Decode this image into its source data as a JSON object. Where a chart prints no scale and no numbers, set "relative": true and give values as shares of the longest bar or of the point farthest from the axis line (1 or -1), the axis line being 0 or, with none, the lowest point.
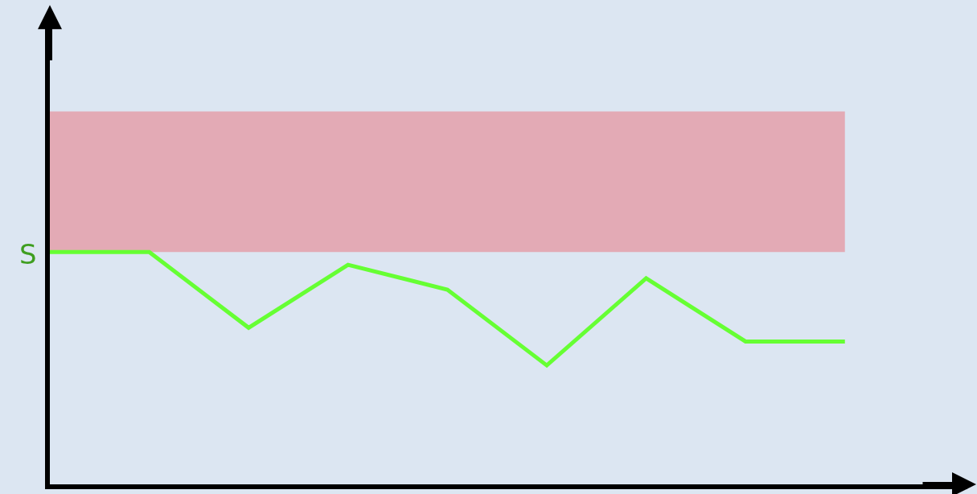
{
  "chart_data": {
    "type": "line",
    "relative": true,
    "marker": "none",
    "line_style": "solid",
    "categories": [
      null,
      null,
      null,
      null,
      null,
      null,
      null,
      null,
      null
    ],
    "series": [
      {
        "color": "#66ff33",
        "values": [
          1,
          1,
          0.674,
          0.945,
          0.838,
          0.512,
          0.887,
          0.615,
          0.615
        ]
      }
    ],
    "bands": [
      {
        "axis": "y",
        "from": 1,
        "to": 1.605,
        "color": "#e3aab5"
      }
    ],
    "annotations": [
      "S"
    ]
  }
}
